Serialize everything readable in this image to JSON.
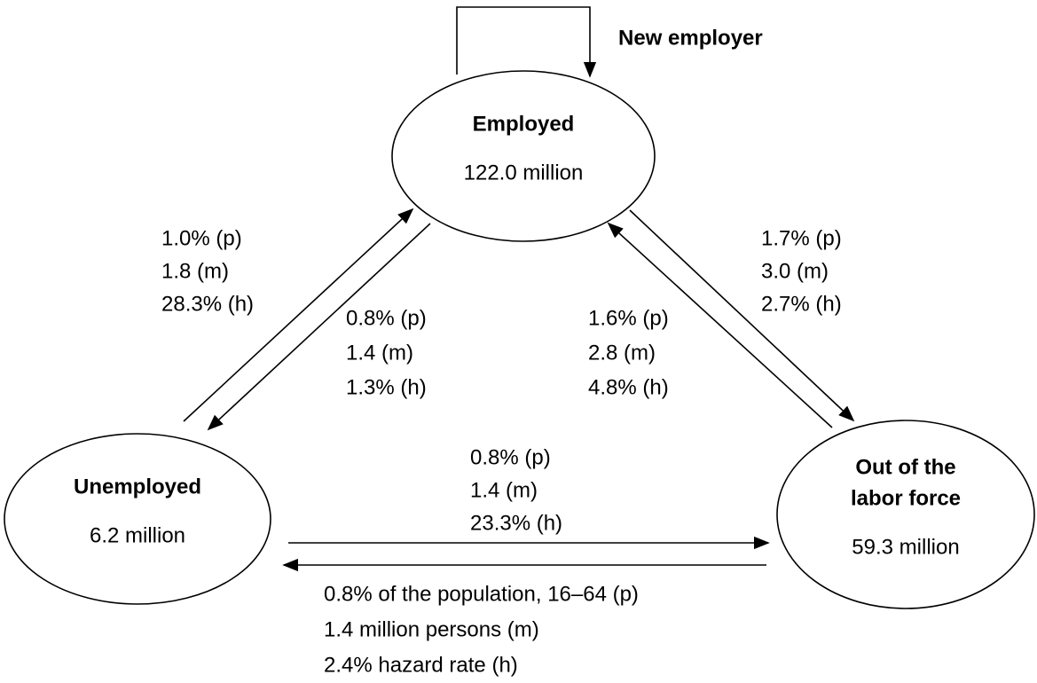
{
  "loop_label": "New employer",
  "nodes": [
    {
      "label": [
        "Employed"
      ],
      "value": "122.0 million"
    },
    {
      "label": [
        "Unemployed"
      ],
      "value": "6.2 million"
    },
    {
      "label": [
        "Out of the",
        "labor force"
      ],
      "value": "59.3 million"
    }
  ],
  "edges": [
    {
      "lines": [
        "1.0% (p)",
        "1.8 (m)",
        "28.3% (h)"
      ]
    },
    {
      "lines": [
        "0.8% (p)",
        "1.4 (m)",
        "1.3% (h)"
      ]
    },
    {
      "lines": [
        "1.6% (p)",
        "2.8 (m)",
        "4.8% (h)"
      ]
    },
    {
      "lines": [
        "1.7% (p)",
        "3.0 (m)",
        "2.7% (h)"
      ]
    },
    {
      "lines": [
        "0.8% (p)",
        "1.4 (m)",
        "23.3% (h)"
      ]
    },
    {
      "lines": [
        "0.8% of the population, 16–64 (p)",
        "1.4 million persons (m)",
        "2.4% hazard rate (h)"
      ]
    }
  ]
}
